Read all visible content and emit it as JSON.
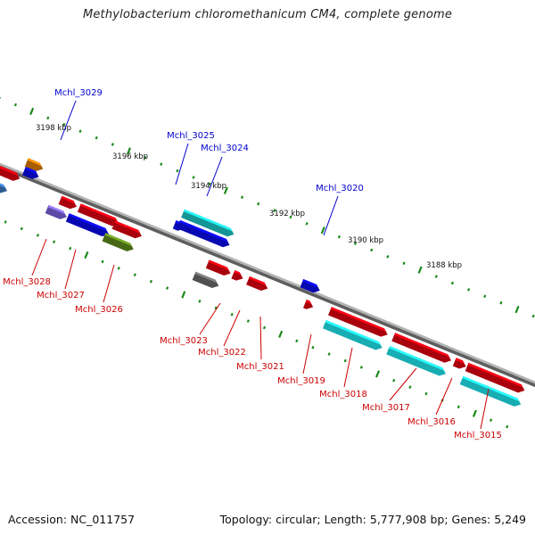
{
  "title": "Methylobacterium chloromethanicum CM4, complete genome",
  "accession": "Accession: NC_011757",
  "summary": "Topology: circular; Length: 5,777,908 bp; Genes: 5,249",
  "colors": {
    "backbone": "#808080",
    "tick": "#1a8a1a",
    "label_top": "#0000cc",
    "label_bottom": "#cc0000"
  },
  "scale_labels": [
    "3198 kbp",
    "3196 kbp",
    "3194 kbp",
    "3192 kbp",
    "3190 kbp",
    "3188 kbp"
  ],
  "gene_labels_top": [
    "Mchl_3029",
    "Mchl_3025",
    "Mchl_3024",
    "Mchl_3020"
  ],
  "gene_labels_bottom": [
    "Mchl_3028",
    "Mchl_3027",
    "Mchl_3026",
    "Mchl_3023",
    "Mchl_3022",
    "Mchl_3021",
    "Mchl_3019",
    "Mchl_3018",
    "Mchl_3017",
    "Mchl_3016",
    "Mchl_3015"
  ]
}
